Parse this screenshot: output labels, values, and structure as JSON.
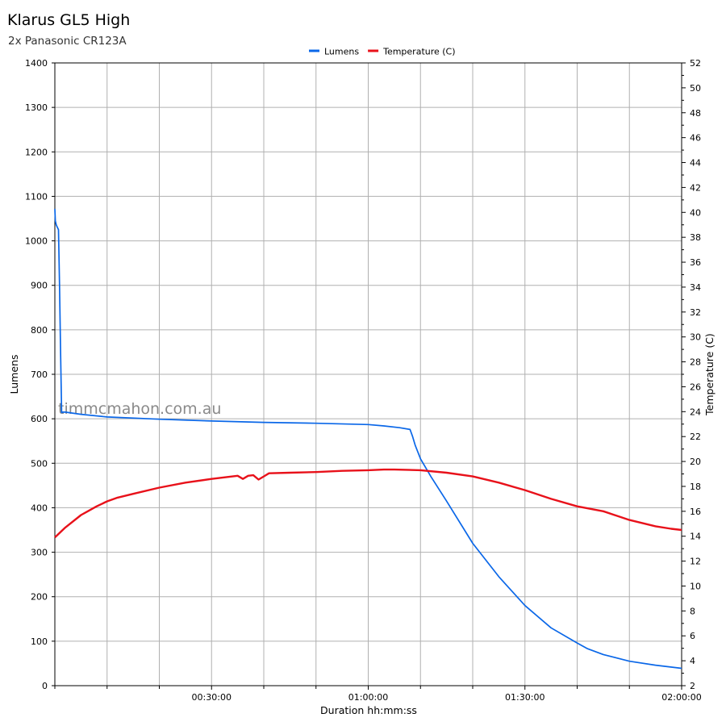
{
  "header": {
    "title": "Klarus GL5 High",
    "subtitle": "2x Panasonic CR123A"
  },
  "watermark": "timmcmahon.com.au",
  "chart_data": {
    "type": "line",
    "title": "Klarus GL5 High",
    "subtitle": "2x Panasonic CR123A",
    "xlabel": "Duration hh:mm:ss",
    "ylabel": "Lumens",
    "y2label": "Temperature (C)",
    "x_unit": "minutes",
    "xlim": [
      0,
      120
    ],
    "ylim": [
      0,
      1400
    ],
    "y2lim": [
      2,
      52
    ],
    "x_major_ticks": [
      30,
      60,
      90,
      120
    ],
    "x_tick_labels": [
      "00:30:00",
      "01:00:00",
      "01:30:00",
      "02:00:00"
    ],
    "x_minor_ticks": [
      0,
      10,
      20,
      40,
      50,
      70,
      80,
      100,
      110
    ],
    "y_ticks": [
      0,
      100,
      200,
      300,
      400,
      500,
      600,
      700,
      800,
      900,
      1000,
      1100,
      1200,
      1300,
      1400
    ],
    "y2_ticks": [
      2,
      4,
      6,
      8,
      10,
      12,
      14,
      16,
      18,
      20,
      22,
      24,
      26,
      28,
      30,
      32,
      34,
      36,
      38,
      40,
      42,
      44,
      46,
      48,
      50,
      52
    ],
    "grid": true,
    "legend_position": "top-center",
    "series": [
      {
        "name": "Lumens",
        "axis": "left",
        "color": "#0a67e8",
        "x": [
          0,
          0.1,
          0.3,
          0.7,
          0.9,
          1.1,
          1.3,
          1.5,
          2,
          5,
          10,
          20,
          30,
          40,
          50,
          60,
          63,
          66,
          68,
          68.5,
          69,
          70,
          72,
          75,
          80,
          85,
          90,
          95,
          100,
          102,
          105,
          110,
          115,
          120
        ],
        "y": [
          1072,
          1045,
          1035,
          1025,
          900,
          750,
          614,
          615,
          615,
          610,
          604,
          599,
          595,
          592,
          590,
          587,
          584,
          580,
          576,
          560,
          540,
          510,
          470,
          415,
          320,
          245,
          180,
          130,
          96,
          83,
          70,
          55,
          46,
          39
        ]
      },
      {
        "name": "Temperature (C)",
        "axis": "right",
        "color": "#e8111a",
        "x": [
          0,
          2,
          5,
          8,
          10,
          12,
          15,
          20,
          25,
          30,
          35,
          36,
          37,
          38,
          39,
          40,
          41,
          45,
          50,
          55,
          60,
          63,
          65,
          70,
          75,
          80,
          85,
          90,
          95,
          100,
          105,
          110,
          115,
          118,
          120
        ],
        "y": [
          13.9,
          14.7,
          15.7,
          16.4,
          16.8,
          17.1,
          17.4,
          17.9,
          18.3,
          18.6,
          18.85,
          18.6,
          18.85,
          18.9,
          18.55,
          18.8,
          19.05,
          19.1,
          19.15,
          19.25,
          19.3,
          19.35,
          19.35,
          19.3,
          19.1,
          18.8,
          18.3,
          17.7,
          17.0,
          16.4,
          16.0,
          15.3,
          14.8,
          14.6,
          14.5
        ]
      }
    ]
  }
}
